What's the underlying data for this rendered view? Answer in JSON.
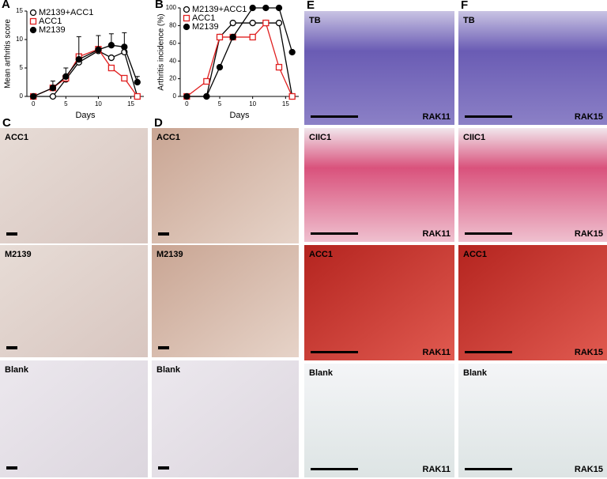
{
  "chart_data": [
    {
      "type": "line",
      "panel": "A",
      "ylabel": "Mean arthritis score",
      "xlabel": "Days",
      "x": [
        0,
        3,
        5,
        7,
        10,
        12,
        14,
        16
      ],
      "xlim": [
        -1,
        17
      ],
      "xticks": [
        0,
        5,
        10,
        15
      ],
      "ylim": [
        0,
        15
      ],
      "yticks": [
        0,
        5,
        10,
        15
      ],
      "series": [
        {
          "name": "M2139+ACC1",
          "color": "#000000",
          "marker": "open-circle",
          "values": [
            0,
            0,
            3,
            6,
            8,
            6.8,
            7.8,
            0
          ]
        },
        {
          "name": "ACC1",
          "color": "#e02020",
          "marker": "open-square",
          "values": [
            0,
            1.5,
            3.2,
            7,
            8.3,
            5,
            3.2,
            0
          ]
        },
        {
          "name": "M2139",
          "color": "#000000",
          "marker": "filled-circle",
          "values": [
            0,
            1.5,
            3.5,
            6.5,
            8.2,
            9,
            8.7,
            2.5
          ],
          "errors": [
            0,
            1.2,
            1.5,
            4,
            2.5,
            2,
            2.5,
            1
          ]
        }
      ]
    },
    {
      "type": "line",
      "panel": "B",
      "ylabel": "Arthritis incidence (%)",
      "xlabel": "Days",
      "x": [
        0,
        3,
        5,
        7,
        10,
        12,
        14,
        16
      ],
      "xlim": [
        -1,
        17
      ],
      "xticks": [
        0,
        5,
        10,
        15
      ],
      "ylim": [
        0,
        100
      ],
      "yticks": [
        0,
        20,
        40,
        60,
        80,
        100
      ],
      "series": [
        {
          "name": "M2139+ACC1",
          "color": "#000000",
          "marker": "open-circle",
          "values": [
            0,
            0,
            67,
            83,
            83,
            83,
            83,
            0
          ]
        },
        {
          "name": "ACC1",
          "color": "#e02020",
          "marker": "open-square",
          "values": [
            0,
            17,
            67,
            67,
            67,
            83,
            33,
            0
          ]
        },
        {
          "name": "M2139",
          "color": "#000000",
          "marker": "filled-circle",
          "values": [
            0,
            0,
            33,
            67,
            100,
            100,
            100,
            50
          ]
        }
      ]
    }
  ],
  "panels": [
    {
      "letter": "C",
      "images": [
        {
          "label": "ACC1"
        },
        {
          "label": "M2139"
        },
        {
          "label": "Blank"
        }
      ]
    },
    {
      "letter": "D",
      "images": [
        {
          "label": "ACC1"
        },
        {
          "label": "M2139"
        },
        {
          "label": "Blank"
        }
      ]
    },
    {
      "letter": "E",
      "images": [
        {
          "label": "TB",
          "sample": "RAK11"
        },
        {
          "label": "CIIC1",
          "sample": "RAK11"
        },
        {
          "label": "ACC1",
          "sample": "RAK11"
        },
        {
          "label": "Blank",
          "sample": "RAK11"
        }
      ]
    },
    {
      "letter": "F",
      "images": [
        {
          "label": "TB",
          "sample": "RAK15"
        },
        {
          "label": "CIIC1",
          "sample": "RAK15"
        },
        {
          "label": "ACC1",
          "sample": "RAK15"
        },
        {
          "label": "Blank",
          "sample": "RAK15"
        }
      ]
    }
  ]
}
